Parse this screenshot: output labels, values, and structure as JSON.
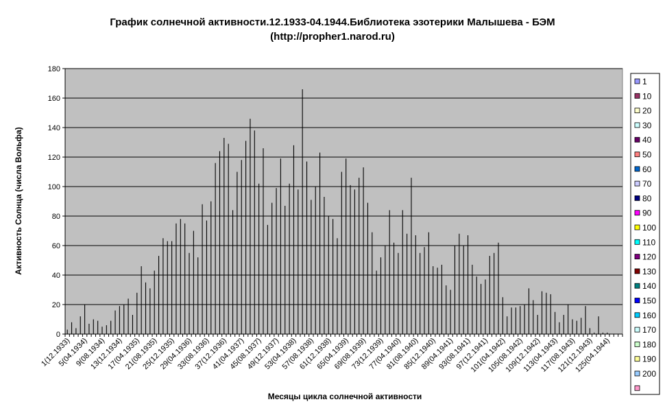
{
  "chart_data": {
    "type": "bar",
    "title": "График солнечной активности.12.1933-04.1944.Библиотека эзотерики Малышева - БЭМ",
    "subtitle": "(http://propher1.narod.ru)",
    "xlabel": "Месяцы цикла солнечной активности",
    "ylabel": "Активность Солнца (числа Вольфа)",
    "ylim": [
      0,
      180
    ],
    "yticks": [
      0,
      20,
      40,
      60,
      80,
      100,
      120,
      140,
      160,
      180
    ],
    "grid": true,
    "legend_position": "right",
    "categories_count": 128,
    "tick_labels": [
      {
        "index": 1,
        "label": "1(12.1933)"
      },
      {
        "index": 5,
        "label": "5(04.1934)"
      },
      {
        "index": 9,
        "label": "9(08.1934)"
      },
      {
        "index": 13,
        "label": "13(12.1934)"
      },
      {
        "index": 17,
        "label": "17(04.1935)"
      },
      {
        "index": 21,
        "label": "21(08.1935)"
      },
      {
        "index": 25,
        "label": "25(12.1935)"
      },
      {
        "index": 29,
        "label": "29(04.1936)"
      },
      {
        "index": 33,
        "label": "33(08.1936)"
      },
      {
        "index": 37,
        "label": "37(12.1936)"
      },
      {
        "index": 41,
        "label": "41(04.1937)"
      },
      {
        "index": 45,
        "label": "45(08.1937)"
      },
      {
        "index": 49,
        "label": "49(12.1937)"
      },
      {
        "index": 53,
        "label": "53(04.1938)"
      },
      {
        "index": 57,
        "label": "57(08.1938)"
      },
      {
        "index": 61,
        "label": "61(12.1938)"
      },
      {
        "index": 65,
        "label": "65(04.1939)"
      },
      {
        "index": 69,
        "label": "69(08.1939)"
      },
      {
        "index": 73,
        "label": "73(12.1939)"
      },
      {
        "index": 77,
        "label": "77(04.1940)"
      },
      {
        "index": 81,
        "label": "81(08.1940)"
      },
      {
        "index": 85,
        "label": "85(12.1940)"
      },
      {
        "index": 89,
        "label": "89(04.1941)"
      },
      {
        "index": 93,
        "label": "93(08.1941)"
      },
      {
        "index": 97,
        "label": "97(12.1941)"
      },
      {
        "index": 101,
        "label": "101(04.1942)"
      },
      {
        "index": 105,
        "label": "105(08.1942)"
      },
      {
        "index": 109,
        "label": "109(12.1942)"
      },
      {
        "index": 113,
        "label": "113(04.1943)"
      },
      {
        "index": 117,
        "label": "117(08.1943)"
      },
      {
        "index": 121,
        "label": "121(12.1943)"
      },
      {
        "index": 125,
        "label": "125(04.1944)"
      }
    ],
    "values": [
      3,
      8,
      4,
      12,
      20,
      7,
      10,
      9,
      5,
      6,
      9,
      16,
      19,
      20,
      24,
      13,
      28,
      46,
      35,
      31,
      43,
      53,
      65,
      63,
      63,
      75,
      78,
      75,
      55,
      70,
      52,
      88,
      77,
      90,
      116,
      124,
      133,
      129,
      84,
      110,
      118,
      131,
      146,
      138,
      102,
      126,
      74,
      89,
      99,
      119,
      87,
      102,
      128,
      98,
      166,
      117,
      91,
      100,
      123,
      93,
      80,
      78,
      65,
      110,
      119,
      101,
      98,
      106,
      113,
      89,
      69,
      43,
      52,
      60,
      84,
      62,
      55,
      84,
      68,
      106,
      67,
      55,
      59,
      69,
      46,
      45,
      47,
      33,
      30,
      60,
      68,
      60,
      67,
      47,
      39,
      34,
      37,
      53,
      55,
      62,
      25,
      12,
      18,
      18,
      19,
      20,
      31,
      23,
      13,
      29,
      28,
      27,
      15,
      8,
      13,
      20,
      10,
      9,
      11,
      19,
      4,
      1,
      12,
      1,
      1,
      0,
      0,
      0
    ],
    "legend": [
      {
        "label": "1",
        "color": "#9999FF"
      },
      {
        "label": "10",
        "color": "#993366"
      },
      {
        "label": "20",
        "color": "#FFFFCC"
      },
      {
        "label": "30",
        "color": "#CCFFFF"
      },
      {
        "label": "40",
        "color": "#660066"
      },
      {
        "label": "50",
        "color": "#FF8080"
      },
      {
        "label": "60",
        "color": "#0066CC"
      },
      {
        "label": "70",
        "color": "#CCCCFF"
      },
      {
        "label": "80",
        "color": "#000080"
      },
      {
        "label": "90",
        "color": "#FF00FF"
      },
      {
        "label": "100",
        "color": "#FFFF00"
      },
      {
        "label": "110",
        "color": "#00FFFF"
      },
      {
        "label": "120",
        "color": "#800080"
      },
      {
        "label": "130",
        "color": "#800000"
      },
      {
        "label": "140",
        "color": "#008080"
      },
      {
        "label": "150",
        "color": "#0000FF"
      },
      {
        "label": "160",
        "color": "#00CCFF"
      },
      {
        "label": "170",
        "color": "#CCFFFF"
      },
      {
        "label": "180",
        "color": "#CCFFCC"
      },
      {
        "label": "190",
        "color": "#FFFF99"
      },
      {
        "label": "200",
        "color": "#99CCFF"
      },
      {
        "label": "",
        "color": "#FF99CC"
      }
    ],
    "plot_background": "#C0C0C0",
    "bar_color": "#000000",
    "gridline_color": "#000000"
  }
}
